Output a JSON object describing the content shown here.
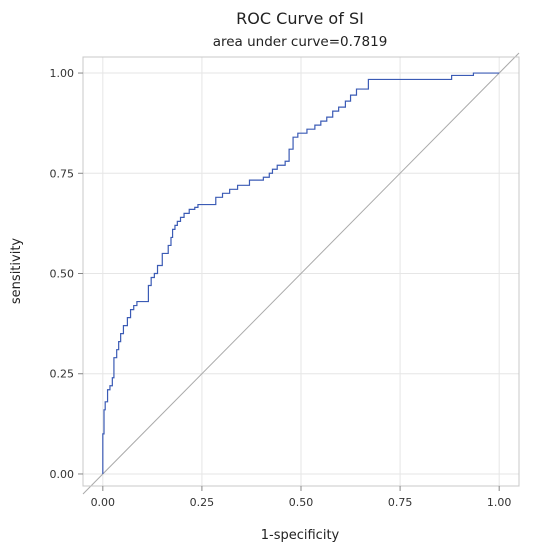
{
  "chart_data": {
    "type": "line",
    "title": "ROC Curve of SI",
    "subtitle": "area under curve=0.7819",
    "xlabel": "1-specificity",
    "ylabel": "sensitivity",
    "xlim": [
      -0.05,
      1.05
    ],
    "ylim": [
      -0.03,
      1.04
    ],
    "x_ticks": [
      0,
      0.25,
      0.5,
      0.75,
      1.0
    ],
    "x_tick_labels": [
      "0.00",
      "0.25",
      "0.50",
      "0.75",
      "1.00"
    ],
    "y_ticks": [
      0,
      0.25,
      0.5,
      0.75,
      1.0
    ],
    "y_tick_labels": [
      "0.00",
      "0.25",
      "0.50",
      "0.75",
      "1.00"
    ],
    "grid": true,
    "colors": {
      "roc": "#3b5bb5",
      "reference": "#aaaaaa",
      "grid": "#e6e6e6",
      "frame": "#c8c8c8"
    },
    "series": [
      {
        "values": [
          [
            0.0,
            0.0
          ],
          [
            0.0,
            0.1
          ],
          [
            0.003,
            0.1
          ],
          [
            0.003,
            0.16
          ],
          [
            0.006,
            0.16
          ],
          [
            0.006,
            0.18
          ],
          [
            0.012,
            0.18
          ],
          [
            0.012,
            0.21
          ],
          [
            0.018,
            0.21
          ],
          [
            0.018,
            0.22
          ],
          [
            0.024,
            0.22
          ],
          [
            0.024,
            0.24
          ],
          [
            0.028,
            0.24
          ],
          [
            0.028,
            0.29
          ],
          [
            0.035,
            0.29
          ],
          [
            0.035,
            0.31
          ],
          [
            0.04,
            0.31
          ],
          [
            0.04,
            0.33
          ],
          [
            0.045,
            0.33
          ],
          [
            0.045,
            0.35
          ],
          [
            0.052,
            0.35
          ],
          [
            0.052,
            0.37
          ],
          [
            0.062,
            0.37
          ],
          [
            0.062,
            0.39
          ],
          [
            0.07,
            0.39
          ],
          [
            0.07,
            0.41
          ],
          [
            0.078,
            0.41
          ],
          [
            0.078,
            0.42
          ],
          [
            0.086,
            0.42
          ],
          [
            0.086,
            0.43
          ],
          [
            0.115,
            0.43
          ],
          [
            0.115,
            0.47
          ],
          [
            0.122,
            0.47
          ],
          [
            0.122,
            0.49
          ],
          [
            0.13,
            0.49
          ],
          [
            0.13,
            0.5
          ],
          [
            0.138,
            0.5
          ],
          [
            0.138,
            0.52
          ],
          [
            0.15,
            0.52
          ],
          [
            0.15,
            0.55
          ],
          [
            0.165,
            0.55
          ],
          [
            0.165,
            0.57
          ],
          [
            0.172,
            0.57
          ],
          [
            0.172,
            0.59
          ],
          [
            0.176,
            0.59
          ],
          [
            0.176,
            0.61
          ],
          [
            0.182,
            0.61
          ],
          [
            0.182,
            0.62
          ],
          [
            0.188,
            0.62
          ],
          [
            0.188,
            0.63
          ],
          [
            0.196,
            0.63
          ],
          [
            0.196,
            0.64
          ],
          [
            0.205,
            0.64
          ],
          [
            0.205,
            0.65
          ],
          [
            0.218,
            0.65
          ],
          [
            0.218,
            0.66
          ],
          [
            0.232,
            0.66
          ],
          [
            0.232,
            0.665
          ],
          [
            0.24,
            0.665
          ],
          [
            0.24,
            0.672
          ],
          [
            0.285,
            0.672
          ],
          [
            0.285,
            0.69
          ],
          [
            0.302,
            0.69
          ],
          [
            0.302,
            0.7
          ],
          [
            0.32,
            0.7
          ],
          [
            0.32,
            0.71
          ],
          [
            0.34,
            0.71
          ],
          [
            0.34,
            0.72
          ],
          [
            0.37,
            0.72
          ],
          [
            0.37,
            0.733
          ],
          [
            0.405,
            0.733
          ],
          [
            0.405,
            0.74
          ],
          [
            0.42,
            0.74
          ],
          [
            0.42,
            0.75
          ],
          [
            0.428,
            0.75
          ],
          [
            0.428,
            0.76
          ],
          [
            0.44,
            0.76
          ],
          [
            0.44,
            0.77
          ],
          [
            0.46,
            0.77
          ],
          [
            0.46,
            0.78
          ],
          [
            0.47,
            0.78
          ],
          [
            0.47,
            0.81
          ],
          [
            0.48,
            0.81
          ],
          [
            0.48,
            0.84
          ],
          [
            0.492,
            0.84
          ],
          [
            0.492,
            0.85
          ],
          [
            0.515,
            0.85
          ],
          [
            0.515,
            0.86
          ],
          [
            0.535,
            0.86
          ],
          [
            0.535,
            0.87
          ],
          [
            0.55,
            0.87
          ],
          [
            0.55,
            0.88
          ],
          [
            0.565,
            0.88
          ],
          [
            0.565,
            0.89
          ],
          [
            0.58,
            0.89
          ],
          [
            0.58,
            0.905
          ],
          [
            0.595,
            0.905
          ],
          [
            0.595,
            0.915
          ],
          [
            0.612,
            0.915
          ],
          [
            0.612,
            0.93
          ],
          [
            0.625,
            0.93
          ],
          [
            0.625,
            0.945
          ],
          [
            0.64,
            0.945
          ],
          [
            0.64,
            0.96
          ],
          [
            0.67,
            0.96
          ],
          [
            0.67,
            0.984
          ],
          [
            0.88,
            0.984
          ],
          [
            0.88,
            0.994
          ],
          [
            0.935,
            0.994
          ],
          [
            0.935,
            1.0
          ],
          [
            1.0,
            1.0
          ]
        ]
      }
    ],
    "reference_line": {
      "x": [
        -0.05,
        1.05
      ],
      "y": [
        -0.05,
        1.05
      ]
    }
  }
}
